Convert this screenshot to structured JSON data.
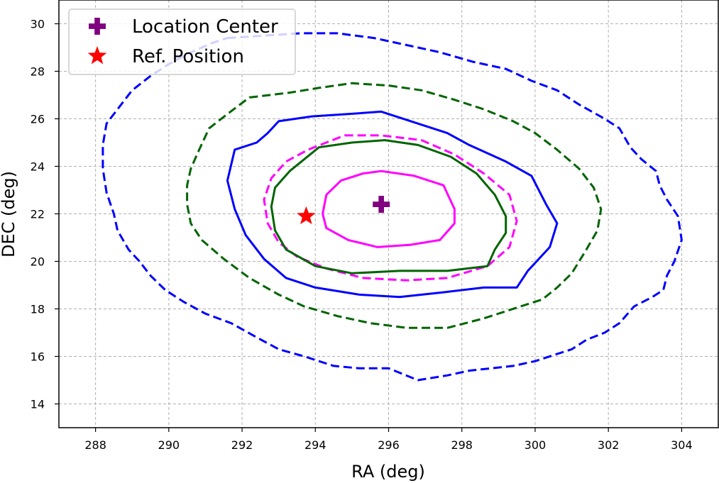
{
  "chart_data": {
    "type": "scatter",
    "xlabel": "RA (deg)",
    "ylabel": "DEC (deg)",
    "xlim": [
      287,
      305
    ],
    "ylim": [
      13,
      31
    ],
    "xticks": [
      "288",
      "290",
      "292",
      "294",
      "296",
      "298",
      "300",
      "302",
      "304"
    ],
    "yticks": [
      "14",
      "16",
      "18",
      "20",
      "22",
      "24",
      "26",
      "28",
      "30"
    ],
    "grid": true,
    "legend_position": "top-left",
    "legend": [
      {
        "label": "Location Center",
        "marker": "plus",
        "color": "#800080"
      },
      {
        "label": "Ref. Position",
        "marker": "star",
        "color": "#ff0000"
      }
    ],
    "points": [
      {
        "name": "Location Center",
        "x": 295.8,
        "y": 22.4,
        "color": "#800080"
      },
      {
        "name": "Ref. Position",
        "x": 293.75,
        "y": 21.9,
        "color": "#ff0000"
      }
    ],
    "contours": [
      {
        "color": "#ff00ff",
        "style": "solid",
        "points": [
          [
            295.8,
            23.8
          ],
          [
            296.7,
            23.6
          ],
          [
            297.5,
            23.2
          ],
          [
            297.8,
            22.2
          ],
          [
            297.8,
            21.6
          ],
          [
            297.4,
            20.9
          ],
          [
            296.6,
            20.7
          ],
          [
            295.7,
            20.6
          ],
          [
            294.9,
            20.9
          ],
          [
            294.3,
            21.4
          ],
          [
            294.2,
            22.0
          ],
          [
            294.3,
            22.8
          ],
          [
            294.7,
            23.4
          ],
          [
            295.3,
            23.7
          ]
        ]
      },
      {
        "color": "#ff00ff",
        "style": "dashed",
        "points": [
          [
            294.8,
            25.3
          ],
          [
            295.8,
            25.3
          ],
          [
            296.9,
            25.1
          ],
          [
            297.8,
            24.5
          ],
          [
            298.6,
            23.7
          ],
          [
            299.3,
            22.8
          ],
          [
            299.5,
            21.7
          ],
          [
            299.3,
            20.6
          ],
          [
            298.7,
            19.8
          ],
          [
            297.6,
            19.3
          ],
          [
            296.5,
            19.2
          ],
          [
            295.3,
            19.3
          ],
          [
            294.3,
            19.7
          ],
          [
            293.5,
            20.2
          ],
          [
            293.0,
            20.8
          ],
          [
            292.7,
            21.6
          ],
          [
            292.6,
            22.6
          ],
          [
            292.8,
            23.5
          ],
          [
            293.2,
            24.2
          ],
          [
            293.8,
            24.7
          ]
        ]
      },
      {
        "color": "#006400",
        "style": "solid",
        "points": [
          [
            294.1,
            24.8
          ],
          [
            295.0,
            25.0
          ],
          [
            295.9,
            25.1
          ],
          [
            296.8,
            24.9
          ],
          [
            297.7,
            24.4
          ],
          [
            298.4,
            23.7
          ],
          [
            298.9,
            22.8
          ],
          [
            299.2,
            21.9
          ],
          [
            299.2,
            21.2
          ],
          [
            298.9,
            20.5
          ],
          [
            298.7,
            19.8
          ],
          [
            297.6,
            19.6
          ],
          [
            296.3,
            19.6
          ],
          [
            295.0,
            19.5
          ],
          [
            294.0,
            19.8
          ],
          [
            293.2,
            20.5
          ],
          [
            292.9,
            21.3
          ],
          [
            292.8,
            22.3
          ],
          [
            292.9,
            23.1
          ],
          [
            293.3,
            23.8
          ]
        ]
      },
      {
        "color": "#0000ff",
        "style": "solid",
        "points": [
          [
            293.9,
            26.1
          ],
          [
            294.9,
            26.2
          ],
          [
            295.8,
            26.3
          ],
          [
            296.8,
            25.8
          ],
          [
            297.6,
            25.4
          ],
          [
            298.2,
            24.9
          ],
          [
            299.2,
            24.2
          ],
          [
            299.9,
            23.6
          ],
          [
            300.3,
            22.4
          ],
          [
            300.6,
            21.6
          ],
          [
            300.4,
            20.6
          ],
          [
            299.8,
            19.6
          ],
          [
            299.5,
            18.9
          ],
          [
            298.6,
            18.9
          ],
          [
            297.5,
            18.7
          ],
          [
            296.3,
            18.5
          ],
          [
            295.2,
            18.6
          ],
          [
            294.0,
            18.9
          ],
          [
            293.2,
            19.3
          ],
          [
            292.6,
            20.1
          ],
          [
            292.1,
            21.1
          ],
          [
            291.8,
            22.2
          ],
          [
            291.6,
            23.4
          ],
          [
            291.8,
            24.7
          ],
          [
            292.4,
            25.0
          ],
          [
            292.7,
            25.4
          ],
          [
            293.0,
            25.9
          ]
        ]
      },
      {
        "color": "#006400",
        "style": "dashed",
        "points": [
          [
            292.2,
            26.9
          ],
          [
            293.3,
            27.1
          ],
          [
            294.1,
            27.3
          ],
          [
            295.0,
            27.5
          ],
          [
            296.0,
            27.4
          ],
          [
            296.9,
            27.2
          ],
          [
            297.8,
            26.8
          ],
          [
            298.6,
            26.4
          ],
          [
            299.4,
            25.9
          ],
          [
            300.0,
            25.4
          ],
          [
            300.6,
            24.7
          ],
          [
            301.2,
            23.9
          ],
          [
            301.6,
            23.1
          ],
          [
            301.8,
            22.2
          ],
          [
            301.7,
            21.3
          ],
          [
            301.4,
            20.5
          ],
          [
            301.0,
            19.5
          ],
          [
            300.6,
            18.9
          ],
          [
            300.2,
            18.4
          ],
          [
            299.6,
            18.1
          ],
          [
            298.6,
            17.6
          ],
          [
            297.6,
            17.2
          ],
          [
            296.5,
            17.2
          ],
          [
            295.5,
            17.4
          ],
          [
            294.6,
            17.7
          ],
          [
            293.7,
            18.1
          ],
          [
            293.0,
            18.6
          ],
          [
            292.2,
            19.3
          ],
          [
            291.5,
            20.1
          ],
          [
            290.9,
            20.9
          ],
          [
            290.6,
            21.6
          ],
          [
            290.5,
            22.4
          ],
          [
            290.5,
            23.2
          ],
          [
            290.6,
            23.9
          ],
          [
            290.8,
            24.6
          ],
          [
            291.1,
            25.6
          ],
          [
            291.6,
            26.2
          ]
        ]
      },
      {
        "color": "#0000ff",
        "style": "dashed",
        "points": [
          [
            291.6,
            29.4
          ],
          [
            292.6,
            29.5
          ],
          [
            293.6,
            29.6
          ],
          [
            294.6,
            29.6
          ],
          [
            295.6,
            29.4
          ],
          [
            296.5,
            29.1
          ],
          [
            297.4,
            28.8
          ],
          [
            298.3,
            28.4
          ],
          [
            299.2,
            28.1
          ],
          [
            299.9,
            27.6
          ],
          [
            300.6,
            27.2
          ],
          [
            301.2,
            26.6
          ],
          [
            301.9,
            26.0
          ],
          [
            302.3,
            25.6
          ],
          [
            302.6,
            24.8
          ],
          [
            302.9,
            24.3
          ],
          [
            303.3,
            23.8
          ],
          [
            303.4,
            23.2
          ],
          [
            303.6,
            22.6
          ],
          [
            303.9,
            21.9
          ],
          [
            304.0,
            20.9
          ],
          [
            303.8,
            20.0
          ],
          [
            303.6,
            19.4
          ],
          [
            303.5,
            18.8
          ],
          [
            303.2,
            18.5
          ],
          [
            302.7,
            18.1
          ],
          [
            302.3,
            17.4
          ],
          [
            301.9,
            17.0
          ],
          [
            301.4,
            16.7
          ],
          [
            301.0,
            16.3
          ],
          [
            300.6,
            16.1
          ],
          [
            300.0,
            15.8
          ],
          [
            299.4,
            15.6
          ],
          [
            298.8,
            15.5
          ],
          [
            298.2,
            15.4
          ],
          [
            297.6,
            15.2
          ],
          [
            296.8,
            15.0
          ],
          [
            296.0,
            15.5
          ],
          [
            295.2,
            15.5
          ],
          [
            294.5,
            15.6
          ],
          [
            293.7,
            16.0
          ],
          [
            293.0,
            16.3
          ],
          [
            292.4,
            16.8
          ],
          [
            291.7,
            17.4
          ],
          [
            291.0,
            17.8
          ],
          [
            290.4,
            18.3
          ],
          [
            289.9,
            18.8
          ],
          [
            289.5,
            19.4
          ],
          [
            289.2,
            20.0
          ],
          [
            288.9,
            20.5
          ],
          [
            288.6,
            21.3
          ],
          [
            288.5,
            22.0
          ],
          [
            288.3,
            22.9
          ],
          [
            288.2,
            23.9
          ],
          [
            288.2,
            24.9
          ],
          [
            288.3,
            25.8
          ],
          [
            288.7,
            26.6
          ],
          [
            289.0,
            27.2
          ],
          [
            289.5,
            27.8
          ],
          [
            290.0,
            28.3
          ],
          [
            290.6,
            28.8
          ],
          [
            291.2,
            29.2
          ]
        ]
      }
    ]
  }
}
